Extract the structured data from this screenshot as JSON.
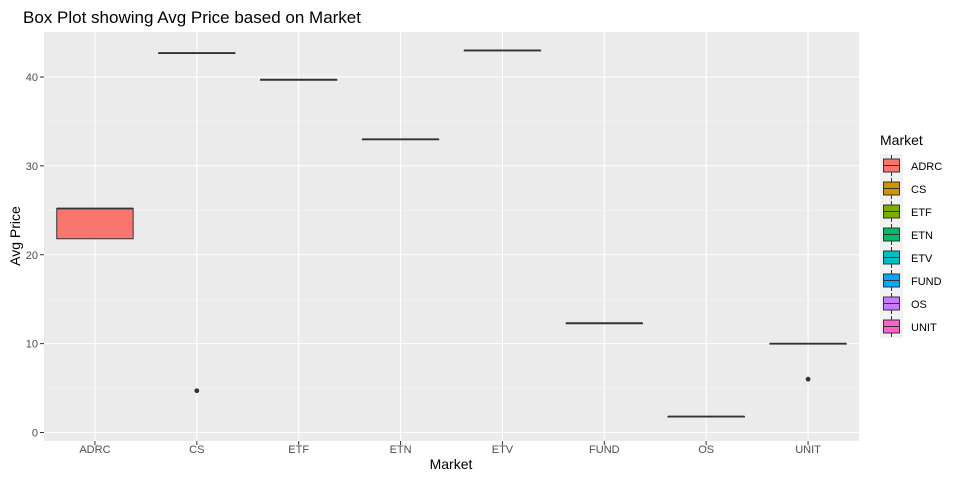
{
  "chart_data": {
    "type": "boxplot",
    "title": "Box Plot showing Avg Price based on Market",
    "xlabel": "Market",
    "ylabel": "Avg Price",
    "ylim": [
      0,
      45
    ],
    "yticks": [
      0,
      10,
      20,
      30,
      40
    ],
    "categories": [
      "ADRC",
      "CS",
      "ETF",
      "ETN",
      "ETV",
      "FUND",
      "OS",
      "UNIT"
    ],
    "grid": true,
    "legend_position": "right",
    "legend_title": "Market",
    "boxes": [
      {
        "name": "ADRC",
        "q1": 21.8,
        "median": 25.2,
        "q3": 25.2,
        "whisker_low": 21.8,
        "whisker_high": 25.2,
        "outliers": [],
        "color": "#F8766D"
      },
      {
        "name": "CS",
        "q1": 42.7,
        "median": 42.7,
        "q3": 42.7,
        "whisker_low": 42.7,
        "whisker_high": 42.7,
        "outliers": [
          4.7
        ],
        "color": "#CD9600"
      },
      {
        "name": "ETF",
        "q1": 39.7,
        "median": 39.7,
        "q3": 39.7,
        "whisker_low": 39.7,
        "whisker_high": 39.7,
        "outliers": [],
        "color": "#7CAE00"
      },
      {
        "name": "ETN",
        "q1": 33.0,
        "median": 33.0,
        "q3": 33.0,
        "whisker_low": 33.0,
        "whisker_high": 33.0,
        "outliers": [],
        "color": "#00BE67"
      },
      {
        "name": "ETV",
        "q1": 43.0,
        "median": 43.0,
        "q3": 43.0,
        "whisker_low": 43.0,
        "whisker_high": 43.0,
        "outliers": [],
        "color": "#00BFC4"
      },
      {
        "name": "FUND",
        "q1": 12.3,
        "median": 12.3,
        "q3": 12.3,
        "whisker_low": 12.3,
        "whisker_high": 12.3,
        "outliers": [],
        "color": "#00A9FF"
      },
      {
        "name": "OS",
        "q1": 1.8,
        "median": 1.8,
        "q3": 1.8,
        "whisker_low": 1.8,
        "whisker_high": 1.8,
        "outliers": [],
        "color": "#C77CFF"
      },
      {
        "name": "UNIT",
        "q1": 10.0,
        "median": 10.0,
        "q3": 10.0,
        "whisker_low": 10.0,
        "whisker_high": 10.0,
        "outliers": [
          6.0
        ],
        "color": "#FF61CC"
      }
    ]
  }
}
